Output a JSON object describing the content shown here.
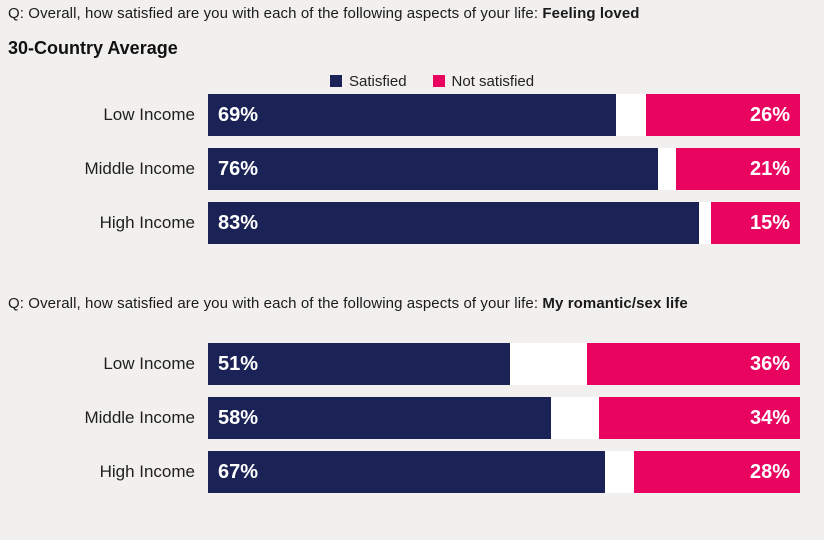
{
  "page": {
    "background": "#f1f0ee",
    "accent_colors": {
      "satisfied": "#1b2356",
      "not_satisfied": "#e8045f"
    }
  },
  "legend": {
    "items": [
      {
        "label": "Satisfied",
        "color": "#1b2356"
      },
      {
        "label": "Not satisfied",
        "color": "#e8045f"
      }
    ]
  },
  "chart_data": [
    {
      "type": "bar",
      "orientation": "horizontal",
      "title": "Q: Overall, how satisfied are you with each of the following aspects of your life: Feeling loved",
      "question_prefix": "Q: Overall, how satisfied are you with each of the following aspects of your life: ",
      "question_topic": "Feeling loved",
      "subtitle": "30-Country Average",
      "categories": [
        "Low Income",
        "Middle Income",
        "High Income"
      ],
      "series": [
        {
          "name": "Satisfied",
          "values": [
            69,
            76,
            83
          ],
          "color": "#1b2356"
        },
        {
          "name": "Not satisfied",
          "values": [
            26,
            21,
            15
          ],
          "color": "#e8045f"
        }
      ],
      "value_format": "percent",
      "xlim": [
        0,
        100
      ],
      "legend_position": "top",
      "grid": false
    },
    {
      "type": "bar",
      "orientation": "horizontal",
      "title": "Q: Overall, how satisfied are you with each of the following aspects of your life: My romantic/sex life",
      "question_prefix": "Q: Overall, how satisfied are you with each of the following aspects of your life: ",
      "question_topic": "My romantic/sex life",
      "categories": [
        "Low Income",
        "Middle Income",
        "High Income"
      ],
      "series": [
        {
          "name": "Satisfied",
          "values": [
            51,
            58,
            67
          ],
          "color": "#1b2356"
        },
        {
          "name": "Not satisfied",
          "values": [
            36,
            34,
            28
          ],
          "color": "#e8045f"
        }
      ],
      "value_format": "percent",
      "xlim": [
        0,
        100
      ],
      "legend_position": "none",
      "grid": false
    }
  ]
}
